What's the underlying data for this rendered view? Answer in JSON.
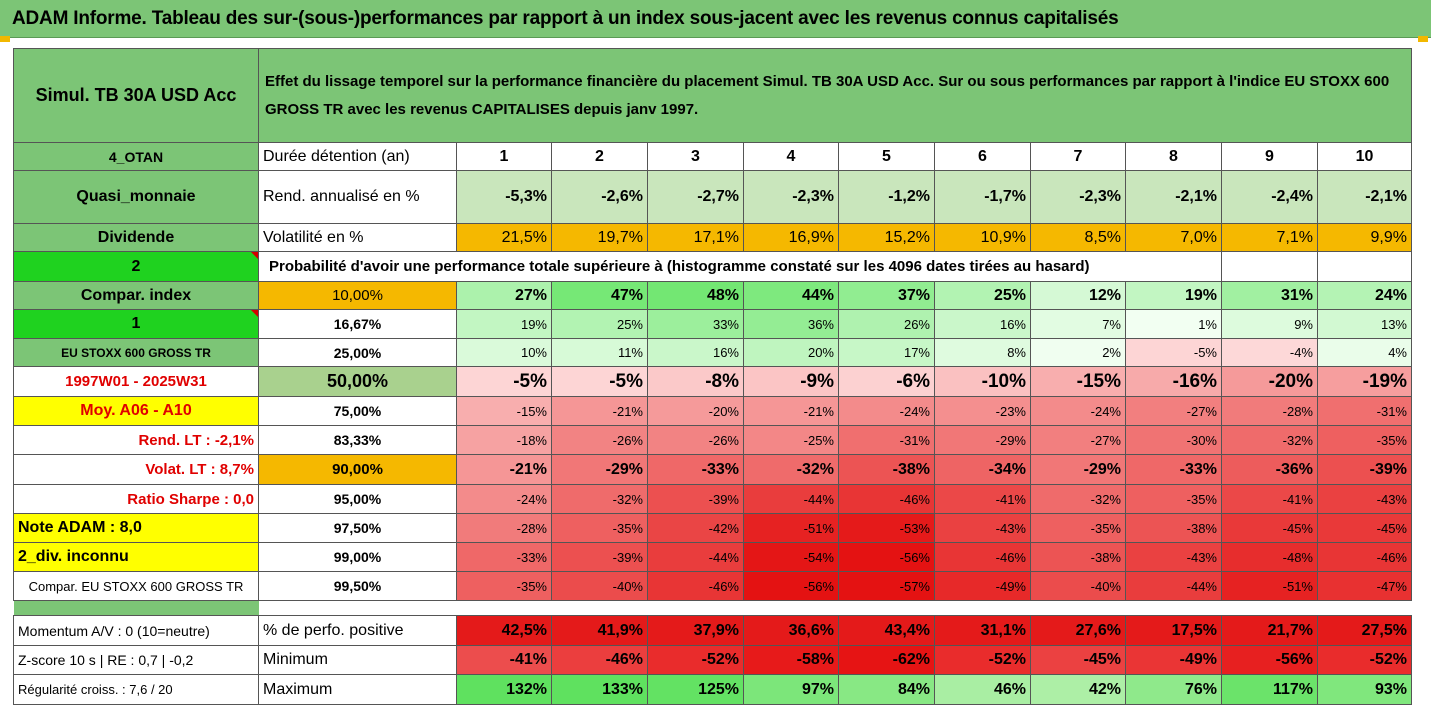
{
  "title": "ADAM Informe. Tableau des sur-(sous-)performances par rapport à un index sous-jacent avec les revenus connus capitalisés",
  "fund": "Simul. TB 30A USD Acc",
  "description": "Effet du lissage temporel sur la performance financière du placement Simul. TB 30A USD Acc. Sur ou sous performances par rapport à l'indice EU STOXX 600 GROSS TR avec les revenus CAPITALISES depuis janv 1997.",
  "left": {
    "code": "4_OTAN",
    "category": "Quasi_monnaie",
    "dividend": "Dividende",
    "num2": "2",
    "compar_index": "Compar. index",
    "num1": "1",
    "index_name": "EU STOXX 600 GROSS TR",
    "period": "1997W01 - 2025W31",
    "moy": "Moy. A06 - A10",
    "rend_lt": "Rend. LT :   -2,1%",
    "volat_lt": "Volat. LT :   8,7%",
    "sharpe": "Ratio Sharpe :   0,0",
    "note": "Note ADAM : 8,0",
    "div_inconnu": "2_div. inconnu",
    "compar_full": "Compar. EU STOXX 600 GROSS TR"
  },
  "labels": {
    "duree": "Durée détention (an)",
    "rend": "Rend. annualisé en %",
    "vol": "Volatilité en %",
    "proba": "Probabilité d'avoir une performance totale supérieure à (histogramme constaté sur les 4096 dates tirées au hasard)"
  },
  "years": [
    "1",
    "2",
    "3",
    "4",
    "5",
    "6",
    "7",
    "8",
    "9",
    "10"
  ],
  "rend": [
    "-5,3%",
    "-2,6%",
    "-2,7%",
    "-2,3%",
    "-1,2%",
    "-1,7%",
    "-2,3%",
    "-2,1%",
    "-2,4%",
    "-2,1%"
  ],
  "vol": [
    "21,5%",
    "19,7%",
    "17,1%",
    "16,9%",
    "15,2%",
    "10,9%",
    "8,5%",
    "7,0%",
    "7,1%",
    "9,9%"
  ],
  "prob_rows": [
    {
      "pct": "10,00%",
      "vals": [
        "27%",
        "47%",
        "48%",
        "44%",
        "37%",
        "25%",
        "12%",
        "19%",
        "31%",
        "24%"
      ]
    },
    {
      "pct": "16,67%",
      "vals": [
        "19%",
        "25%",
        "33%",
        "36%",
        "26%",
        "16%",
        "7%",
        "1%",
        "9%",
        "13%"
      ]
    },
    {
      "pct": "25,00%",
      "vals": [
        "10%",
        "11%",
        "16%",
        "20%",
        "17%",
        "8%",
        "2%",
        "-5%",
        "-4%",
        "4%"
      ]
    },
    {
      "pct": "50,00%",
      "vals": [
        "-5%",
        "-5%",
        "-8%",
        "-9%",
        "-6%",
        "-10%",
        "-15%",
        "-16%",
        "-20%",
        "-19%"
      ]
    },
    {
      "pct": "75,00%",
      "vals": [
        "-15%",
        "-21%",
        "-20%",
        "-21%",
        "-24%",
        "-23%",
        "-24%",
        "-27%",
        "-28%",
        "-31%"
      ]
    },
    {
      "pct": "83,33%",
      "vals": [
        "-18%",
        "-26%",
        "-26%",
        "-25%",
        "-31%",
        "-29%",
        "-27%",
        "-30%",
        "-32%",
        "-35%"
      ]
    },
    {
      "pct": "90,00%",
      "vals": [
        "-21%",
        "-29%",
        "-33%",
        "-32%",
        "-38%",
        "-34%",
        "-29%",
        "-33%",
        "-36%",
        "-39%"
      ]
    },
    {
      "pct": "95,00%",
      "vals": [
        "-24%",
        "-32%",
        "-39%",
        "-44%",
        "-46%",
        "-41%",
        "-32%",
        "-35%",
        "-41%",
        "-43%"
      ]
    },
    {
      "pct": "97,50%",
      "vals": [
        "-28%",
        "-35%",
        "-42%",
        "-51%",
        "-53%",
        "-43%",
        "-35%",
        "-38%",
        "-45%",
        "-45%"
      ]
    },
    {
      "pct": "99,00%",
      "vals": [
        "-33%",
        "-39%",
        "-44%",
        "-54%",
        "-56%",
        "-46%",
        "-38%",
        "-43%",
        "-48%",
        "-46%"
      ]
    },
    {
      "pct": "99,50%",
      "vals": [
        "-35%",
        "-40%",
        "-46%",
        "-56%",
        "-57%",
        "-49%",
        "-40%",
        "-44%",
        "-51%",
        "-47%"
      ]
    }
  ],
  "bottom": {
    "momentum": "Momentum A/V : 0 (10=neutre)",
    "zscore": "Z-score 10 s  |  RE : 0,7  |  -0,2",
    "regularite": "Régularité croiss. : 7,6 / 20",
    "pos_label": "% de perfo. positive",
    "min_label": "Minimum",
    "max_label": "Maximum",
    "pos": [
      "42,5%",
      "41,9%",
      "37,9%",
      "36,6%",
      "43,4%",
      "31,1%",
      "27,6%",
      "17,5%",
      "21,7%",
      "27,5%"
    ],
    "min": [
      "-41%",
      "-46%",
      "-52%",
      "-58%",
      "-62%",
      "-52%",
      "-45%",
      "-49%",
      "-56%",
      "-52%"
    ],
    "max": [
      "132%",
      "133%",
      "125%",
      "97%",
      "84%",
      "46%",
      "42%",
      "76%",
      "117%",
      "93%"
    ]
  },
  "colors": {
    "header_green": "#7cc576",
    "bright_green": "#1fd21f",
    "yellow": "#ffff00",
    "orange": "#f5b800",
    "strong_red": "#e41a1a",
    "pale_green": "#c9e6bc"
  }
}
